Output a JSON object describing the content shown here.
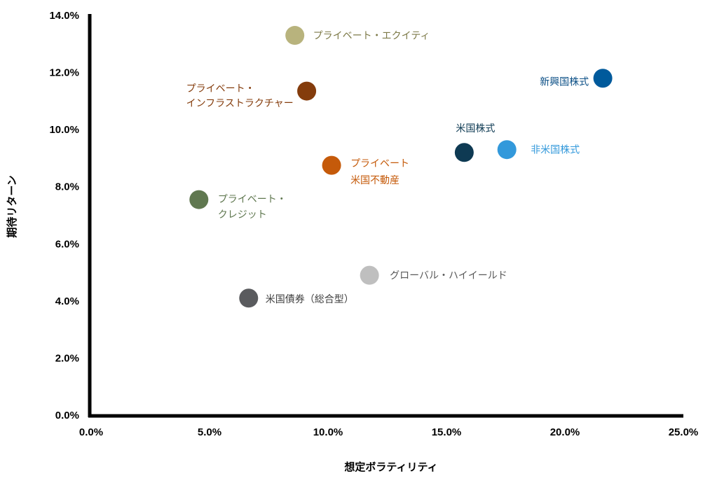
{
  "chart_data": {
    "type": "scatter",
    "title": "",
    "xlabel": "想定ボラティリティ",
    "ylabel": "期待リターン",
    "xlim": [
      0,
      25
    ],
    "ylim": [
      0,
      14
    ],
    "x_ticks": [
      "0.0%",
      "5.0%",
      "10.0%",
      "15.0%",
      "20.0%",
      "25.0%"
    ],
    "y_ticks": [
      "0.0%",
      "2.0%",
      "4.0%",
      "6.0%",
      "8.0%",
      "10.0%",
      "12.0%",
      "14.0%"
    ],
    "grid": false,
    "legend": "none",
    "points": [
      {
        "label": [
          "プライベート・エクイティ"
        ],
        "x": 8.6,
        "y": 13.3,
        "color": "#b8b37d",
        "label_color": "#7d7a48"
      },
      {
        "label": [
          "新興国株式"
        ],
        "x": 21.6,
        "y": 11.8,
        "color": "#005a9c",
        "label_color": "#0b4f86"
      },
      {
        "label": [
          "プライベート・",
          "インフラストラクチャー"
        ],
        "x": 9.1,
        "y": 11.35,
        "color": "#843c0c",
        "label_color": "#843c0c"
      },
      {
        "label": [
          "米国株式"
        ],
        "x": 15.75,
        "y": 9.2,
        "color": "#0e3a53",
        "label_color": "#0e3a53"
      },
      {
        "label": [
          "非米国株式"
        ],
        "x": 17.55,
        "y": 9.3,
        "color": "#3399db",
        "label_color": "#3399db"
      },
      {
        "label": [
          "プライベート",
          "米国不動産"
        ],
        "x": 10.15,
        "y": 8.75,
        "color": "#c55a0a",
        "label_color": "#c55a0a"
      },
      {
        "label": [
          "プライベート・",
          "クレジット"
        ],
        "x": 4.55,
        "y": 7.55,
        "color": "#607850",
        "label_color": "#607850"
      },
      {
        "label": [
          "グローバル・ハイイールド"
        ],
        "x": 11.75,
        "y": 4.9,
        "color": "#bfbfbf",
        "label_color": "#595959"
      },
      {
        "label": [
          "米国債券（総合型）"
        ],
        "x": 6.65,
        "y": 4.1,
        "color": "#5a5b5e",
        "label_color": "#404040"
      }
    ]
  }
}
